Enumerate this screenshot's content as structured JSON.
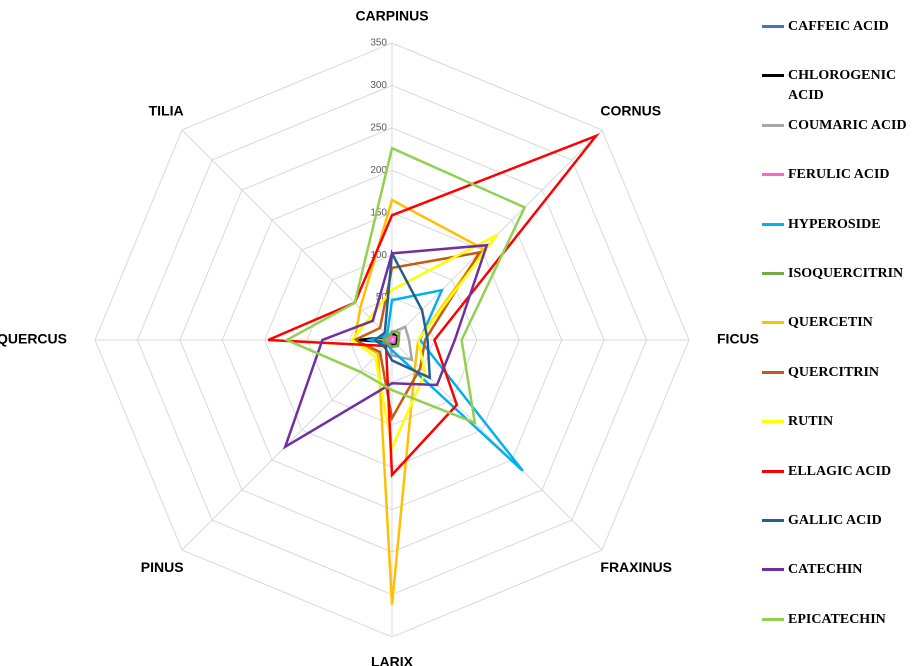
{
  "chart_data": {
    "type": "radar",
    "categories": [
      "CARPINUS",
      "CORNUS",
      "FICUS",
      "FRAXINUS",
      "LARIX",
      "PINUS",
      "QUERCUS",
      "TILIA"
    ],
    "ylim": [
      0,
      350
    ],
    "yticks": [
      0,
      50,
      100,
      150,
      200,
      250,
      300,
      350
    ],
    "grid": true,
    "series": [
      {
        "name": "CAFFEIC ACID",
        "color": "#4472c4",
        "values": [
          5,
          6,
          4,
          5,
          4,
          3,
          6,
          3
        ]
      },
      {
        "name": "CHLOROGENIC ACID",
        "color": "#000000",
        "values": [
          8,
          7,
          5,
          6,
          5,
          4,
          40,
          5
        ]
      },
      {
        "name": "COUMARIC ACID",
        "color": "#a5a5a5",
        "values": [
          9,
          22,
          20,
          33,
          18,
          5,
          10,
          5
        ]
      },
      {
        "name": "FERULIC ACID",
        "color": "#ff66cc",
        "values": [
          4,
          5,
          3,
          4,
          3,
          2,
          4,
          2
        ]
      },
      {
        "name": "HYPEROSIDE",
        "color": "#00b0f0",
        "values": [
          47,
          83,
          33,
          218,
          12,
          8,
          26,
          8
        ]
      },
      {
        "name": "ISOQUERCITRIN",
        "color": "#70ad47",
        "values": [
          10,
          12,
          8,
          10,
          8,
          6,
          12,
          6
        ]
      },
      {
        "name": "QUERCETIN",
        "color": "#ffc000",
        "values": [
          165,
          152,
          31,
          39,
          312,
          23,
          44,
          53
        ]
      },
      {
        "name": "QUERCITRIN",
        "color": "#c55a11",
        "values": [
          85,
          146,
          39,
          47,
          92,
          20,
          44,
          20
        ]
      },
      {
        "name": "RUTIN",
        "color": "#ffff00",
        "values": [
          59,
          175,
          31,
          55,
          127,
          28,
          47,
          37
        ]
      },
      {
        "name": "ELLAGIC ACID",
        "color": "#ff0000",
        "values": [
          147,
          340,
          50,
          108,
          159,
          10,
          146,
          62
        ]
      },
      {
        "name": "GALLIC ACID",
        "color": "#255e91",
        "values": [
          102,
          50,
          42,
          63,
          24,
          12,
          20,
          12
        ]
      },
      {
        "name": "CATECHIN",
        "color": "#7030a0",
        "values": [
          102,
          158,
          74,
          75,
          51,
          178,
          82,
          32
        ]
      },
      {
        "name": "EPICATECHIN",
        "color": "#92d050",
        "values": [
          226,
          221,
          82,
          138,
          59,
          53,
          124,
          62
        ]
      }
    ]
  }
}
